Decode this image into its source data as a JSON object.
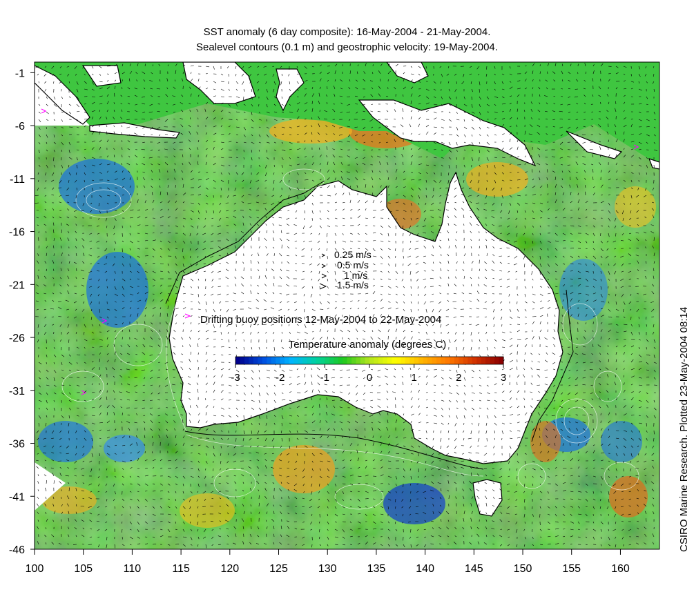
{
  "title_line1": "SST anomaly (6 day composite): 16-May-2004 - 21-May-2004.",
  "title_line2": "Sealevel contours (0.1 m) and geostrophic velocity: 19-May-2004.",
  "side_credit": "CSIRO Marine Research. Plotted 23-May-2004 08:14",
  "axes": {
    "x_ticks": [
      "100",
      "105",
      "110",
      "115",
      "120",
      "125",
      "130",
      "135",
      "140",
      "145",
      "150",
      "155",
      "160"
    ],
    "y_ticks": [
      "-1",
      "-6",
      "-11",
      "-16",
      "-21",
      "-26",
      "-31",
      "-36",
      "-41",
      "-46"
    ],
    "lon_range": [
      100,
      164
    ],
    "lat_range": [
      -46,
      0
    ]
  },
  "velocity_legend": [
    "0.25 m/s",
    "0.5 m/s",
    "1 m/s",
    "1.5 m/s"
  ],
  "buoy_legend": "Drifting buoy positions 12-May-2004 to 22-May-2004",
  "colorbar": {
    "title": "Temperature anomaly (degrees C)",
    "ticks": [
      "-3",
      "-2",
      "-1",
      "0",
      "1",
      "2",
      "3"
    ],
    "range": [
      -3,
      3
    ],
    "colors": [
      "#00008b",
      "#0050e0",
      "#00b4ff",
      "#00d2a0",
      "#1ec81e",
      "#b4e61e",
      "#ffff00",
      "#ffb400",
      "#ff7800",
      "#d23200",
      "#8b0000"
    ]
  },
  "colors": {
    "land": "#ffffff",
    "coast": "#000000",
    "contour": "#ffffff",
    "buoy": "#ff00ff",
    "ocean_base": "#3fc640"
  }
}
